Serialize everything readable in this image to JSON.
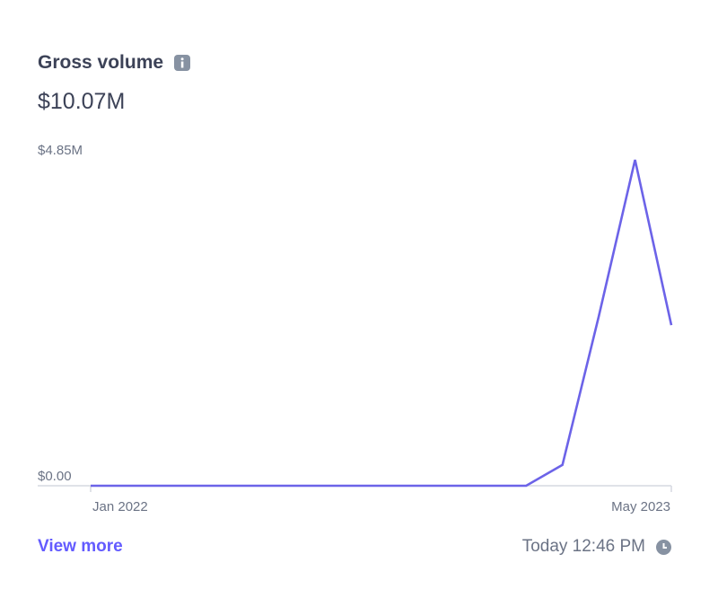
{
  "widget": {
    "title": "Gross volume",
    "total": "$10.07M",
    "link": "View more",
    "timestamp": "Today 12:46 PM"
  },
  "chart_data": {
    "type": "line",
    "categories": [
      "Jan 2022",
      null,
      null,
      null,
      null,
      null,
      null,
      null,
      null,
      null,
      null,
      null,
      null,
      null,
      null,
      null,
      "May 2023"
    ],
    "values": [
      0,
      0,
      0,
      0,
      0,
      0,
      0,
      0,
      0,
      0,
      0,
      0,
      0,
      310000,
      2520000,
      4850000,
      2390000
    ],
    "color": "#6c63e8",
    "ylim": [
      0,
      4850000
    ],
    "yticks": [
      {
        "value": 0,
        "label": "$0.00"
      },
      {
        "value": 4850000,
        "label": "$4.85M"
      }
    ],
    "grid": false
  }
}
